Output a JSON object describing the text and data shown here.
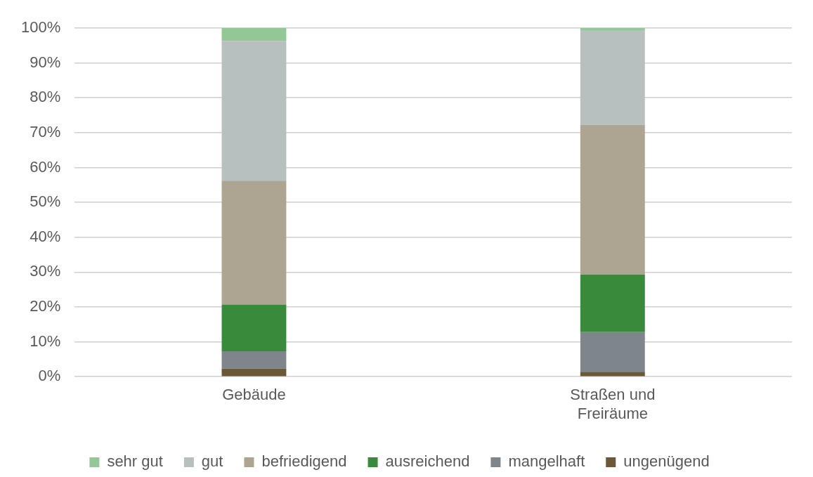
{
  "chart_data": {
    "type": "bar",
    "stacked": true,
    "categories": [
      "Gebäude",
      "Straßen und Freiräume"
    ],
    "series": [
      {
        "name": "ungenügend",
        "color": "#6b5836",
        "values": [
          2.3,
          1.4
        ]
      },
      {
        "name": "mangelhaft",
        "color": "#7f868b",
        "values": [
          5.0,
          11.4
        ]
      },
      {
        "name": "ausreichend",
        "color": "#3a8a3c",
        "values": [
          13.4,
          16.5
        ]
      },
      {
        "name": "befriedigend",
        "color": "#ada592",
        "values": [
          35.5,
          43.0
        ]
      },
      {
        "name": "gut",
        "color": "#b8bfbf",
        "values": [
          40.1,
          27.1
        ]
      },
      {
        "name": "sehr gut",
        "color": "#93c796",
        "values": [
          3.7,
          0.6
        ]
      }
    ],
    "ylim": [
      0,
      100
    ],
    "yticks": [
      {
        "value": 0,
        "label": "0%"
      },
      {
        "value": 10,
        "label": "10%"
      },
      {
        "value": 20,
        "label": "20%"
      },
      {
        "value": 30,
        "label": "30%"
      },
      {
        "value": 40,
        "label": "40%"
      },
      {
        "value": 50,
        "label": "50%"
      },
      {
        "value": 60,
        "label": "60%"
      },
      {
        "value": 70,
        "label": "70%"
      },
      {
        "value": 80,
        "label": "80%"
      },
      {
        "value": 90,
        "label": "90%"
      },
      {
        "value": 100,
        "label": "100%"
      }
    ],
    "grid": "y",
    "legend": "bottom"
  }
}
